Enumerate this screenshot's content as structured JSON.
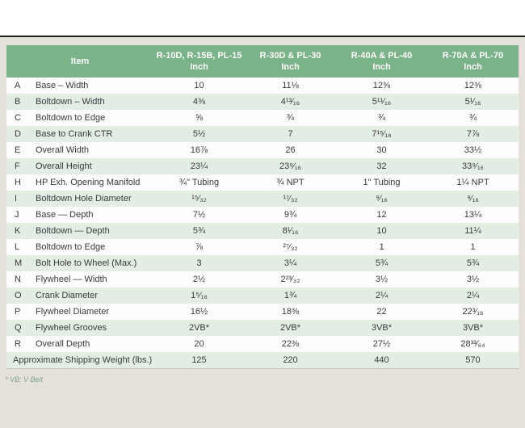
{
  "page": {
    "footnote": "* VB: V Belt",
    "colors": {
      "header_green": "#7ab388",
      "stripe_green": "#e2ede4",
      "panel_beige": "#e5e1da",
      "rule_dark": "#20241f",
      "text": "#3a3a3a",
      "footnote_green": "#7da78c"
    }
  },
  "table": {
    "item_header": "Item",
    "columns": [
      {
        "label": "R-10D, R-15B, PL-15",
        "unit": "Inch"
      },
      {
        "label": "R-30D & PL-30",
        "unit": "Inch"
      },
      {
        "label": "R-40A & PL-40",
        "unit": "Inch"
      },
      {
        "label": "R-70A & PL-70",
        "unit": "Inch"
      }
    ],
    "rows": [
      {
        "key": "A",
        "item": "Base – Width",
        "values": [
          "10",
          "11⅛",
          "12⅜",
          "12⅜"
        ]
      },
      {
        "key": "B",
        "item": "Boltdown – Width",
        "values": [
          "4⅜",
          "4¹³⁄₁₆",
          "5¹¹⁄₁₆",
          "5¹⁄₁₆"
        ]
      },
      {
        "key": "C",
        "item": "Boltdown to Edge",
        "values": [
          "⅝",
          "¾",
          "¾",
          "¾"
        ]
      },
      {
        "key": "D",
        "item": "Base to Crank CTR",
        "values": [
          "5½",
          "7",
          "7¹⁵⁄₁₆",
          "7⅞"
        ]
      },
      {
        "key": "E",
        "item": "Overall Width",
        "values": [
          "16⅞",
          "26",
          "30",
          "33½"
        ]
      },
      {
        "key": "F",
        "item": "Overall Height",
        "values": [
          "23¼",
          "23⁹⁄₁₆",
          "32",
          "33⁹⁄₁₆"
        ]
      },
      {
        "key": "H",
        "item": "HP Exh. Opening Manifold",
        "values": [
          "¾\" Tubing",
          "¾ NPT",
          "1\" Tubing",
          "1¼ NPT"
        ]
      },
      {
        "key": "I",
        "item": "Boltdown Hole Diameter",
        "values": [
          "¹⁵⁄₃₂",
          "¹⁷⁄₃₂",
          "⁹⁄₁₆",
          "⁹⁄₁₆"
        ]
      },
      {
        "key": "J",
        "item": "Base — Depth",
        "values": [
          "7½",
          "9¾",
          "12",
          "13¼"
        ]
      },
      {
        "key": "K",
        "item": "Boltdown — Depth",
        "values": [
          "5¾",
          "8¹⁄₁₆",
          "10",
          "11¼"
        ]
      },
      {
        "key": "L",
        "item": "Boltdown to Edge",
        "values": [
          "⅞",
          "²⁷⁄₃₂",
          "1",
          "1"
        ]
      },
      {
        "key": "M",
        "item": "Bolt Hole to Wheel (Max.)",
        "values": [
          "3",
          "3¼",
          "5¾",
          "5¾"
        ]
      },
      {
        "key": "N",
        "item": "Flywheel — Width",
        "values": [
          "2½",
          "2²³⁄₃₂",
          "3½",
          "3½"
        ]
      },
      {
        "key": "O",
        "item": "Crank Diameter",
        "values": [
          "1⁵⁄₁₆",
          "1¾",
          "2¼",
          "2¼"
        ]
      },
      {
        "key": "P",
        "item": "Flywheel Diameter",
        "values": [
          "16½",
          "18⅜",
          "22",
          "22³⁄₁₆"
        ]
      },
      {
        "key": "Q",
        "item": "Flywheel Grooves",
        "values": [
          "2VB*",
          "2VB*",
          "3VB*",
          "3VB*"
        ]
      },
      {
        "key": "R",
        "item": "Overall Depth",
        "values": [
          "20",
          "22⅜",
          "27½",
          "28³³⁄₆₄"
        ]
      },
      {
        "key": "",
        "item": "Approximate Shipping Weight (lbs.)",
        "values": [
          "125",
          "220",
          "440",
          "570"
        ],
        "footer": true
      }
    ]
  }
}
